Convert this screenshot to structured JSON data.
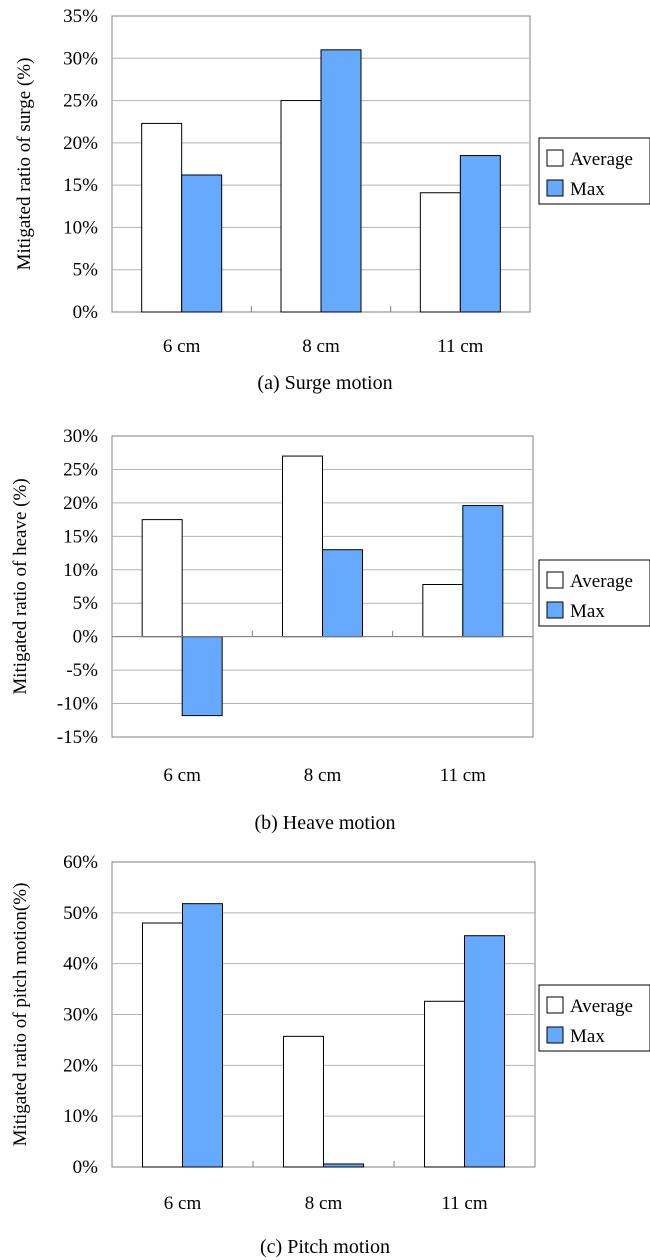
{
  "colors": {
    "average": "#ffffff",
    "max": "#66aaff",
    "grid": "#b3b3b3",
    "frame": "#808080",
    "bar_stroke": "#000000"
  },
  "chart_data": [
    {
      "type": "bar",
      "categories": [
        "6 cm",
        "8 cm",
        "11 cm"
      ],
      "series": [
        {
          "name": "Average",
          "values": [
            22.3,
            25.0,
            14.1
          ]
        },
        {
          "name": "Max",
          "values": [
            16.2,
            31.0,
            18.5
          ]
        }
      ],
      "ylabel": "Mitigated ratio of surge (%)",
      "caption": "(a) Surge motion",
      "ylim": [
        0,
        35
      ],
      "yticks": [
        0,
        5,
        10,
        15,
        20,
        25,
        30,
        35
      ],
      "ytick_labels": [
        "0%",
        "5%",
        "10%",
        "15%",
        "20%",
        "25%",
        "30%",
        "35%"
      ],
      "grid": true,
      "legend": "right"
    },
    {
      "type": "bar",
      "categories": [
        "6 cm",
        "8 cm",
        "11 cm"
      ],
      "series": [
        {
          "name": "Average",
          "values": [
            17.5,
            27.0,
            7.8
          ]
        },
        {
          "name": "Max",
          "values": [
            -11.8,
            13.0,
            19.6
          ]
        }
      ],
      "ylabel": "Mitigated ratio of heave (%)",
      "caption": "(b) Heave motion",
      "ylim": [
        -15,
        30
      ],
      "yticks": [
        -15,
        -10,
        -5,
        0,
        5,
        10,
        15,
        20,
        25,
        30
      ],
      "ytick_labels": [
        "-15%",
        "-10%",
        "-5%",
        "0%",
        "5%",
        "10%",
        "15%",
        "20%",
        "25%",
        "30%"
      ],
      "grid": true,
      "legend": "right"
    },
    {
      "type": "bar",
      "categories": [
        "6 cm",
        "8 cm",
        "11 cm"
      ],
      "series": [
        {
          "name": "Average",
          "values": [
            48.0,
            25.7,
            32.6
          ]
        },
        {
          "name": "Max",
          "values": [
            51.8,
            0.6,
            45.5
          ]
        }
      ],
      "ylabel": "Mitigated ratio of pitch motion(%)",
      "caption": "(c) Pitch motion",
      "ylim": [
        0,
        60
      ],
      "yticks": [
        0,
        10,
        20,
        30,
        40,
        50,
        60
      ],
      "ytick_labels": [
        "0%",
        "10%",
        "20%",
        "30%",
        "40%",
        "50%",
        "60%"
      ],
      "grid": true,
      "legend": "right"
    }
  ]
}
